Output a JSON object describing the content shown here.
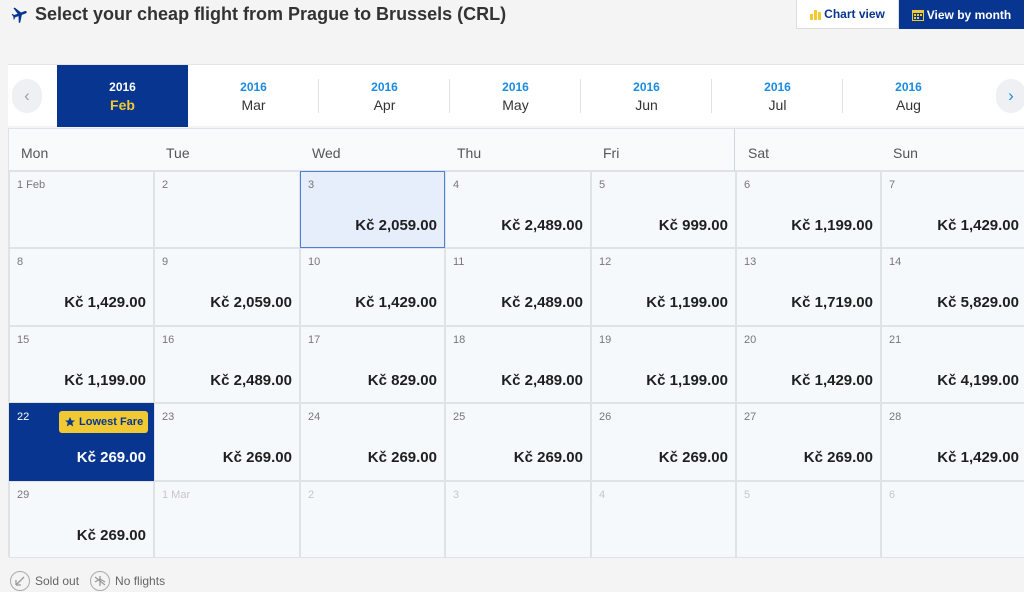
{
  "header": {
    "title": "Select your cheap flight from Prague to Brussels (CRL)",
    "chart_view_label": "Chart view",
    "month_view_label": "View by month"
  },
  "months": [
    {
      "year": "2016",
      "month": "Feb",
      "active": true
    },
    {
      "year": "2016",
      "month": "Mar"
    },
    {
      "year": "2016",
      "month": "Apr"
    },
    {
      "year": "2016",
      "month": "May"
    },
    {
      "year": "2016",
      "month": "Jun"
    },
    {
      "year": "2016",
      "month": "Jul"
    },
    {
      "year": "2016",
      "month": "Aug"
    }
  ],
  "weekdays": [
    "Mon",
    "Tue",
    "Wed",
    "Thu",
    "Fri",
    "Sat",
    "Sun"
  ],
  "weeks": [
    [
      {
        "day": "1 Feb",
        "price": ""
      },
      {
        "day": "2",
        "price": ""
      },
      {
        "day": "3",
        "price": "Kč 2,059.00",
        "selected": true
      },
      {
        "day": "4",
        "price": "Kč 2,489.00"
      },
      {
        "day": "5",
        "price": "Kč 999.00"
      },
      {
        "day": "6",
        "price": "Kč 1,199.00"
      },
      {
        "day": "7",
        "price": "Kč 1,429.00"
      }
    ],
    [
      {
        "day": "8",
        "price": "Kč 1,429.00"
      },
      {
        "day": "9",
        "price": "Kč 2,059.00"
      },
      {
        "day": "10",
        "price": "Kč 1,429.00"
      },
      {
        "day": "11",
        "price": "Kč 2,489.00"
      },
      {
        "day": "12",
        "price": "Kč 1,199.00"
      },
      {
        "day": "13",
        "price": "Kč 1,719.00"
      },
      {
        "day": "14",
        "price": "Kč 5,829.00"
      }
    ],
    [
      {
        "day": "15",
        "price": "Kč 1,199.00"
      },
      {
        "day": "16",
        "price": "Kč 2,489.00"
      },
      {
        "day": "17",
        "price": "Kč 829.00"
      },
      {
        "day": "18",
        "price": "Kč 2,489.00"
      },
      {
        "day": "19",
        "price": "Kč 1,199.00"
      },
      {
        "day": "20",
        "price": "Kč 1,429.00"
      },
      {
        "day": "21",
        "price": "Kč 4,199.00"
      }
    ],
    [
      {
        "day": "22",
        "price": "Kč 269.00",
        "lowest": true,
        "badge": "Lowest Fare"
      },
      {
        "day": "23",
        "price": "Kč 269.00"
      },
      {
        "day": "24",
        "price": "Kč 269.00"
      },
      {
        "day": "25",
        "price": "Kč 269.00"
      },
      {
        "day": "26",
        "price": "Kč 269.00"
      },
      {
        "day": "27",
        "price": "Kč 269.00"
      },
      {
        "day": "28",
        "price": "Kč 1,429.00"
      }
    ],
    [
      {
        "day": "29",
        "price": "Kč 269.00"
      },
      {
        "day": "1 Mar",
        "price": "",
        "other": true
      },
      {
        "day": "2",
        "price": "",
        "other": true
      },
      {
        "day": "3",
        "price": "",
        "other": true
      },
      {
        "day": "4",
        "price": "",
        "other": true
      },
      {
        "day": "5",
        "price": "",
        "other": true
      },
      {
        "day": "6",
        "price": "",
        "other": true
      }
    ]
  ],
  "legend": {
    "sold_out": "Sold out",
    "no_flights": "No flights"
  },
  "icons": {
    "title": "plane-icon",
    "chart": "bar-chart-icon",
    "month": "calendar-icon",
    "prev": "chevron-left-icon",
    "next": "chevron-right-icon",
    "badge": "star-icon"
  },
  "colors": {
    "brand": "#073590",
    "accent": "#f1c933",
    "link": "#1a8be3"
  }
}
